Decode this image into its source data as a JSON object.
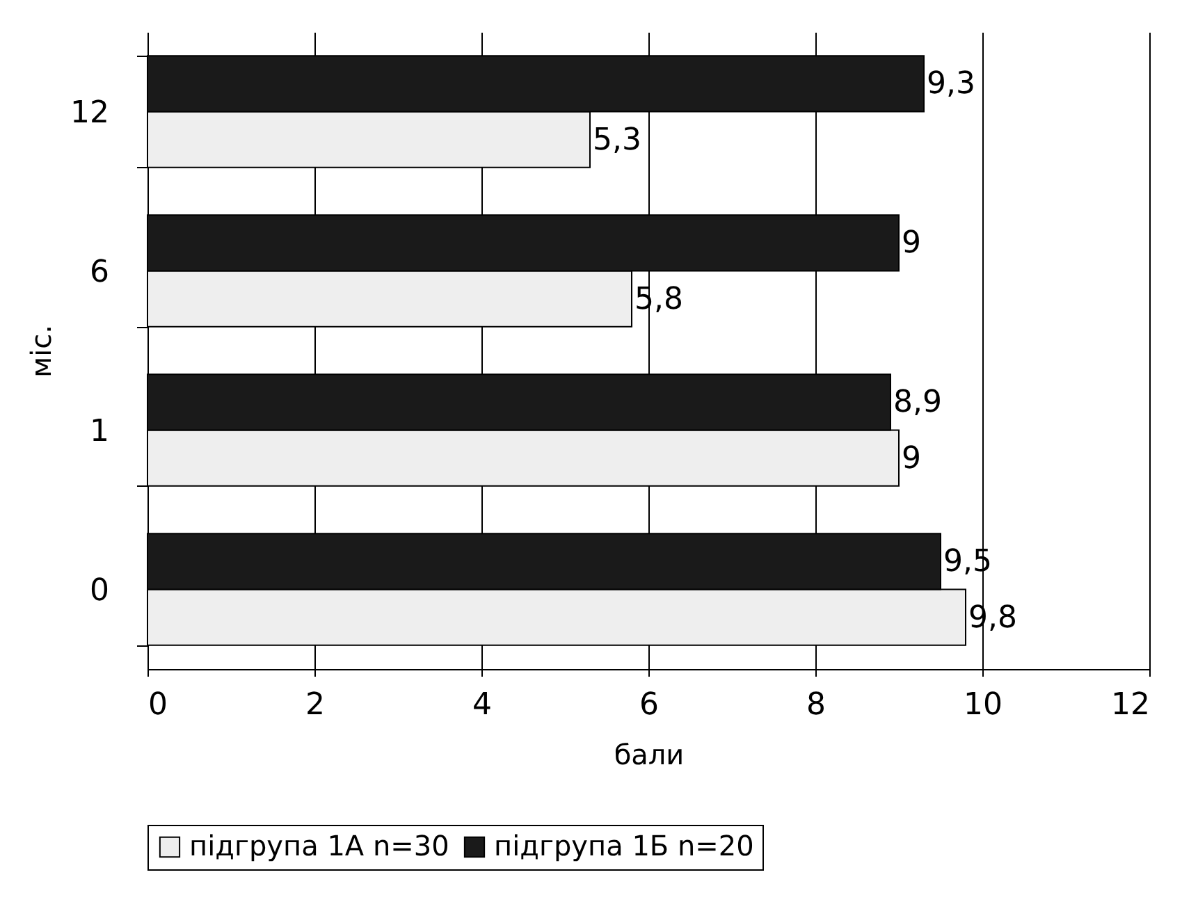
{
  "chart_data": {
    "type": "bar",
    "orientation": "horizontal",
    "xlabel": "бали",
    "ylabel": "міс.",
    "categories": [
      "12",
      "6",
      "1",
      "0"
    ],
    "series": [
      {
        "name": "підгрупа 1А n=30",
        "color": "#eeeeee",
        "values": [
          5.3,
          5.8,
          9,
          9.8
        ],
        "value_labels": [
          "5,3",
          "5,8",
          "9",
          "9,8"
        ]
      },
      {
        "name": "підгрупа 1Б n=20",
        "color": "#1a1a1a",
        "values": [
          9.3,
          9,
          8.9,
          9.5
        ],
        "value_labels": [
          "9,3",
          "9",
          "8,9",
          "9,5"
        ]
      }
    ],
    "xlim": [
      0,
      12
    ],
    "xticks": [
      0,
      2,
      4,
      6,
      8,
      10,
      12
    ],
    "grid": "x",
    "legend": "bottom"
  }
}
